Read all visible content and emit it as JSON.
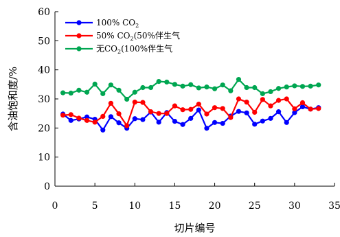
{
  "chart_data": {
    "type": "line",
    "xlabel": "切片编号",
    "ylabel": "含油饱和度/%",
    "xlim": [
      0,
      35
    ],
    "ylim": [
      0,
      60
    ],
    "xticks": [
      0,
      5,
      10,
      15,
      20,
      25,
      30,
      35
    ],
    "yticks": [
      0,
      10,
      20,
      30,
      40,
      50,
      60
    ],
    "grid": false,
    "legend_position": "top-left",
    "x": [
      1,
      2,
      3,
      4,
      5,
      6,
      7,
      8,
      9,
      10,
      11,
      12,
      13,
      14,
      15,
      16,
      17,
      18,
      19,
      20,
      21,
      22,
      23,
      24,
      25,
      26,
      27,
      28,
      29,
      30,
      31,
      32,
      33
    ],
    "series": [
      {
        "name": "100% CO2",
        "name_main": "100% CO",
        "name_sub": "2",
        "name_tail": "",
        "color": "#0000ff",
        "values": [
          24.8,
          22.6,
          23.1,
          23.8,
          23.0,
          19.3,
          23.9,
          21.8,
          19.9,
          23.2,
          22.9,
          25.5,
          22.0,
          25.3,
          22.3,
          21.2,
          23.3,
          26.2,
          19.9,
          21.9,
          21.6,
          24.1,
          25.7,
          25.2,
          21.3,
          22.4,
          23.3,
          25.6,
          21.9,
          25.3,
          27.3,
          26.5,
          27.0
        ]
      },
      {
        "name": "50% CO2(50%伴生气",
        "name_main": "50% CO",
        "name_sub": "2",
        "name_tail": "(50%伴生气",
        "color": "#ff0000",
        "values": [
          24.4,
          24.6,
          23.4,
          22.6,
          22.0,
          24.0,
          28.5,
          24.9,
          20.8,
          28.9,
          28.8,
          25.6,
          25.0,
          25.0,
          27.6,
          26.3,
          26.4,
          28.2,
          24.8,
          27.0,
          26.7,
          23.6,
          30.0,
          28.9,
          25.4,
          29.8,
          27.6,
          29.5,
          30.0,
          26.6,
          28.7,
          26.5,
          26.7
        ]
      },
      {
        "name": "无CO2(100%伴生气",
        "name_main": "无CO",
        "name_sub": "2",
        "name_tail": "(100%伴生气",
        "color": "#00a651",
        "values": [
          32.1,
          32.0,
          33.0,
          32.3,
          35.1,
          31.8,
          34.8,
          33.0,
          29.9,
          32.3,
          33.9,
          33.9,
          36.0,
          35.8,
          35.0,
          34.4,
          34.9,
          33.8,
          34.1,
          33.5,
          34.8,
          32.8,
          36.7,
          33.9,
          33.9,
          31.8,
          32.5,
          33.6,
          34.1,
          34.5,
          34.3,
          34.4,
          34.8
        ]
      }
    ]
  }
}
